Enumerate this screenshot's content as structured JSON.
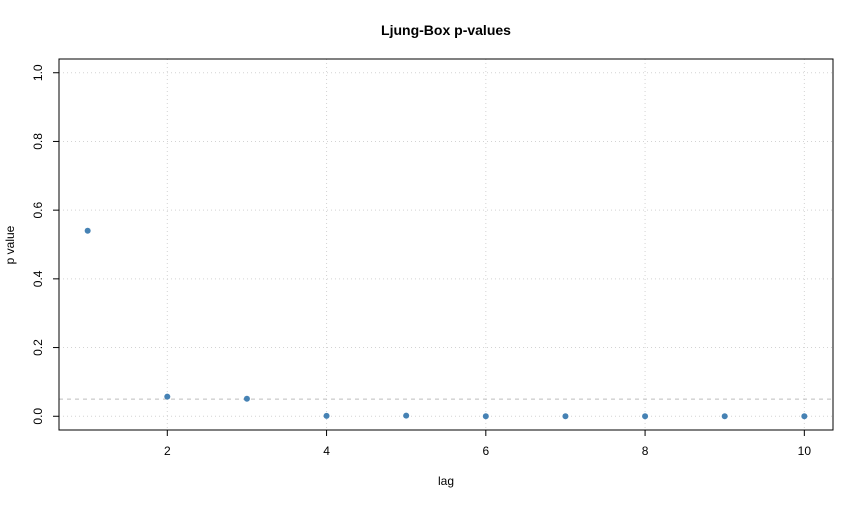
{
  "chart_data": {
    "type": "scatter",
    "title": "Ljung-Box p-values",
    "xlabel": "lag",
    "ylabel": "p value",
    "x": [
      1,
      2,
      3,
      4,
      5,
      6,
      7,
      8,
      9,
      10
    ],
    "y": [
      0.54,
      0.057,
      0.051,
      0.001,
      0.002,
      0.0,
      0.0,
      0.0,
      0.0,
      0.0
    ],
    "xlim": [
      0.64,
      10.36
    ],
    "ylim": [
      -0.04,
      1.04
    ],
    "x_ticks": [
      2,
      4,
      6,
      8,
      10
    ],
    "y_ticks": [
      0.0,
      0.2,
      0.4,
      0.6,
      0.8,
      1.0
    ],
    "x_tick_labels": [
      "2",
      "4",
      "6",
      "8",
      "10"
    ],
    "y_tick_labels": [
      "0.0",
      "0.2",
      "0.4",
      "0.6",
      "0.8",
      "1.0"
    ],
    "reference_line_y": 0.05,
    "grid": true,
    "point_color": "#4682B4",
    "grid_color": "#D3D3D3",
    "reference_line_color": "#BEBEBE"
  }
}
